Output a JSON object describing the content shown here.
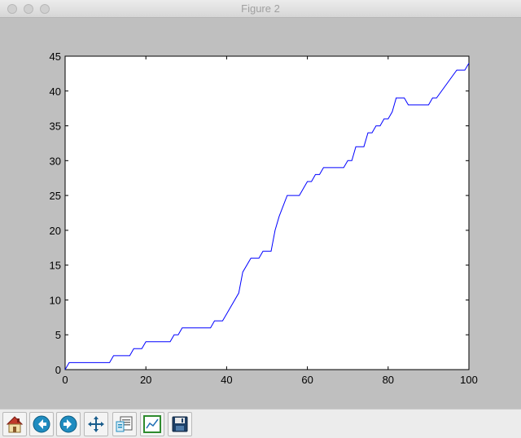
{
  "window": {
    "title": "Figure 2"
  },
  "toolbar": {
    "buttons": [
      "home",
      "back",
      "forward",
      "pan",
      "configure-subplots",
      "zoom",
      "save"
    ]
  },
  "colors": {
    "line": "#0000ff",
    "figure_bg": "#bfbfbf"
  },
  "chart_data": {
    "type": "line",
    "title": "",
    "xlabel": "",
    "ylabel": "",
    "xlim": [
      0,
      100
    ],
    "ylim": [
      0,
      45
    ],
    "xticks": [
      "0",
      "20",
      "40",
      "60",
      "80",
      "100"
    ],
    "yticks": [
      "0",
      "5",
      "10",
      "15",
      "20",
      "25",
      "30",
      "35",
      "40",
      "45"
    ],
    "grid": false,
    "series": [
      {
        "x": [
          0,
          1,
          11,
          12,
          16,
          17,
          19,
          20,
          26,
          27,
          28,
          29,
          36,
          37,
          39,
          40,
          43,
          44,
          46,
          48,
          49,
          51,
          52,
          53,
          55,
          58,
          59,
          60,
          61,
          62,
          63,
          64,
          69,
          70,
          71,
          72,
          74,
          75,
          76,
          77,
          78,
          79,
          80,
          81,
          82,
          84,
          85,
          90,
          91,
          92,
          97,
          99,
          100
        ],
        "y": [
          0,
          1,
          1,
          2,
          2,
          3,
          3,
          4,
          4,
          5,
          5,
          6,
          6,
          7,
          7,
          8,
          11,
          14,
          16,
          16,
          17,
          17,
          20,
          22,
          25,
          25,
          26,
          27,
          27,
          28,
          28,
          29,
          29,
          30,
          30,
          32,
          32,
          34,
          34,
          35,
          35,
          36,
          36,
          37,
          39,
          39,
          38,
          38,
          39,
          39,
          43,
          43,
          44
        ]
      }
    ]
  }
}
